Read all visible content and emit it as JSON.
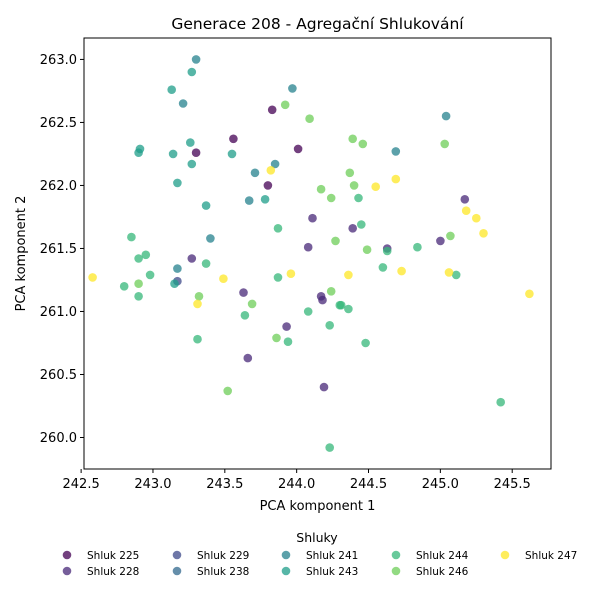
{
  "chart_data": {
    "type": "scatter",
    "title": "Generace 208 - Agregační Shlukování",
    "xlabel": "PCA komponent 1",
    "ylabel": "PCA komponent 2",
    "xlim": [
      242.52,
      245.77
    ],
    "ylim": [
      259.75,
      263.17
    ],
    "xticks": [
      {
        "value": 242.5,
        "label": "242.5"
      },
      {
        "value": 243.0,
        "label": "243.0"
      },
      {
        "value": 243.5,
        "label": "243.5"
      },
      {
        "value": 244.0,
        "label": "244.0"
      },
      {
        "value": 244.5,
        "label": "244.5"
      },
      {
        "value": 245.0,
        "label": "245.0"
      },
      {
        "value": 245.5,
        "label": "245.5"
      }
    ],
    "yticks": [
      {
        "value": 260.0,
        "label": "260.0"
      },
      {
        "value": 260.5,
        "label": "260.5"
      },
      {
        "value": 261.0,
        "label": "261.0"
      },
      {
        "value": 261.5,
        "label": "261.5"
      },
      {
        "value": 262.0,
        "label": "262.0"
      },
      {
        "value": 262.5,
        "label": "262.5"
      },
      {
        "value": 263.0,
        "label": "263.0"
      }
    ],
    "grid": false,
    "legend": {
      "title": "Shluky",
      "placement": "bottom",
      "columns": 5
    },
    "marker_opacity": 0.75,
    "series": [
      {
        "name": "Shluk 225",
        "color": "#440154",
        "points": [
          [
            243.3,
            262.26
          ],
          [
            243.56,
            262.37
          ],
          [
            243.83,
            262.6
          ],
          [
            243.8,
            262.0
          ],
          [
            244.01,
            262.29
          ]
        ]
      },
      {
        "name": "Shluk 228",
        "color": "#482878",
        "points": [
          [
            243.27,
            261.42
          ],
          [
            243.63,
            261.15
          ],
          [
            243.93,
            260.88
          ],
          [
            244.19,
            260.4
          ],
          [
            243.66,
            260.63
          ],
          [
            244.08,
            261.51
          ],
          [
            244.11,
            261.74
          ],
          [
            244.17,
            261.12
          ],
          [
            244.18,
            261.09
          ],
          [
            244.39,
            261.66
          ],
          [
            244.63,
            261.5
          ],
          [
            245.0,
            261.56
          ],
          [
            245.17,
            261.89
          ]
        ]
      },
      {
        "name": "Shluk 229",
        "color": "#3e4a89",
        "points": [
          [
            243.17,
            261.24
          ]
        ]
      },
      {
        "name": "Shluk 238",
        "color": "#31688e",
        "points": []
      },
      {
        "name": "Shluk 241",
        "color": "#26828e",
        "points": [
          [
            243.3,
            263.0
          ],
          [
            243.21,
            262.65
          ],
          [
            243.97,
            262.77
          ],
          [
            243.71,
            262.1
          ],
          [
            243.67,
            261.88
          ],
          [
            243.85,
            262.17
          ],
          [
            245.04,
            262.55
          ],
          [
            244.69,
            262.27
          ],
          [
            243.4,
            261.58
          ],
          [
            243.17,
            261.34
          ]
        ]
      },
      {
        "name": "Shluk 243",
        "color": "#1f9e89",
        "points": [
          [
            243.27,
            262.9
          ],
          [
            243.13,
            262.76
          ],
          [
            243.26,
            262.34
          ],
          [
            242.91,
            262.29
          ],
          [
            242.9,
            262.26
          ],
          [
            243.27,
            262.17
          ],
          [
            243.55,
            262.25
          ],
          [
            243.14,
            262.25
          ],
          [
            243.17,
            262.02
          ],
          [
            243.37,
            261.84
          ],
          [
            243.78,
            261.89
          ],
          [
            243.15,
            261.22
          ]
        ]
      },
      {
        "name": "Shluk 244",
        "color": "#35b779",
        "points": [
          [
            244.45,
            261.69
          ],
          [
            244.3,
            261.05
          ],
          [
            242.85,
            261.59
          ],
          [
            242.95,
            261.45
          ],
          [
            242.9,
            261.42
          ],
          [
            242.98,
            261.29
          ],
          [
            242.8,
            261.2
          ],
          [
            242.9,
            261.12
          ],
          [
            243.37,
            261.38
          ],
          [
            243.31,
            260.78
          ],
          [
            243.64,
            260.97
          ],
          [
            243.87,
            261.66
          ],
          [
            243.87,
            261.27
          ],
          [
            243.94,
            260.76
          ],
          [
            244.08,
            261.0
          ],
          [
            244.23,
            260.89
          ],
          [
            244.31,
            261.05
          ],
          [
            244.36,
            261.02
          ],
          [
            244.43,
            261.9
          ],
          [
            244.48,
            260.75
          ],
          [
            244.6,
            261.35
          ],
          [
            244.63,
            261.48
          ],
          [
            244.84,
            261.51
          ],
          [
            245.11,
            261.29
          ],
          [
            245.42,
            260.28
          ],
          [
            244.23,
            259.92
          ]
        ]
      },
      {
        "name": "Shluk 246",
        "color": "#6ece58",
        "points": [
          [
            243.92,
            262.64
          ],
          [
            244.09,
            262.53
          ],
          [
            244.39,
            262.37
          ],
          [
            244.46,
            262.33
          ],
          [
            244.37,
            262.1
          ],
          [
            244.4,
            262.0
          ],
          [
            244.17,
            261.97
          ],
          [
            244.24,
            261.9
          ],
          [
            244.27,
            261.56
          ],
          [
            244.49,
            261.49
          ],
          [
            245.07,
            261.6
          ],
          [
            245.03,
            262.33
          ],
          [
            243.32,
            261.12
          ],
          [
            243.69,
            261.06
          ],
          [
            242.9,
            261.22
          ],
          [
            244.24,
            261.16
          ],
          [
            243.86,
            260.79
          ],
          [
            243.52,
            260.37
          ]
        ]
      },
      {
        "name": "Shluk 247",
        "color": "#fde725",
        "points": [
          [
            244.69,
            262.05
          ],
          [
            244.55,
            261.99
          ],
          [
            243.82,
            262.12
          ],
          [
            245.18,
            261.8
          ],
          [
            245.25,
            261.74
          ],
          [
            245.3,
            261.62
          ],
          [
            244.73,
            261.32
          ],
          [
            245.06,
            261.31
          ],
          [
            244.36,
            261.29
          ],
          [
            243.96,
            261.3
          ],
          [
            243.49,
            261.26
          ],
          [
            243.31,
            261.06
          ],
          [
            242.58,
            261.27
          ],
          [
            245.62,
            261.14
          ]
        ]
      }
    ]
  }
}
